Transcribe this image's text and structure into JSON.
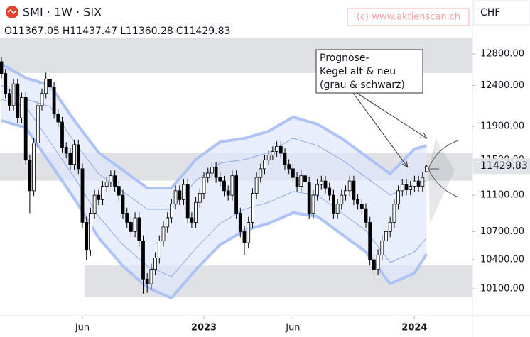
{
  "chart_data": {
    "type": "candlestick",
    "title": "SMI · 1W · SIX",
    "ohlc_prefixes": [
      "O",
      "H",
      "L",
      "C"
    ],
    "watermark": "(c) www.aktienscan.ch",
    "currency": "CHF",
    "annotation": [
      "Prognose-",
      "Kegel alt & neu",
      "(grau & schwarz)"
    ],
    "yscale": "log",
    "ylim": [
      9829,
      13516
    ],
    "yticks": [
      {
        "value": 10100,
        "label": "10100.00"
      },
      {
        "value": 10400,
        "label": "10400.00"
      },
      {
        "value": 10700,
        "label": "10700.00"
      },
      {
        "value": 11100,
        "label": "11100.00"
      },
      {
        "value": 11500,
        "label": "11500.00"
      },
      {
        "value": 11900,
        "label": "11900.00"
      },
      {
        "value": 12400,
        "label": "12400.00"
      },
      {
        "value": 12800,
        "label": "12800.00"
      }
    ],
    "up_color": "#ffffff",
    "down_color": "#000000",
    "zone_color": "#d5d7dc",
    "zones": [
      {
        "from": 12556,
        "to": 13010,
        "from_index": 0
      },
      {
        "from": 11264,
        "to": 11587,
        "from_index": 0
      },
      {
        "from": 10013,
        "to": 10341,
        "from_index": 21
      }
    ],
    "band_fill": "#dfe7fc",
    "band_x": [
      0,
      6,
      12,
      18,
      24,
      30,
      36,
      42,
      48,
      54,
      60,
      66,
      72,
      78,
      84,
      90,
      96,
      102,
      105
    ],
    "bands": [
      {
        "color": "#aec3f5",
        "width": 4,
        "values": [
          12672,
          12493,
          12403,
          11968,
          11588,
          11383,
          11181,
          11181,
          11506,
          11713,
          11755,
          11840,
          12010,
          11925,
          11755,
          11547,
          11342,
          11629,
          11671
        ]
      },
      {
        "color": "#aec3f5",
        "width": 4,
        "values": [
          11968,
          11882,
          11465,
          11062,
          10634,
          10334,
          10114,
          10006,
          10297,
          10559,
          10711,
          10788,
          10904,
          10865,
          10672,
          10483,
          10151,
          10261,
          10461
        ]
      },
      {
        "color": "#8ea8ec",
        "width": 1,
        "values": [
          12403,
          12227,
          12140,
          11713,
          11342,
          11141,
          10943,
          10943,
          11262,
          11465,
          11506,
          11588,
          11755,
          11671,
          11506,
          11302,
          11101,
          11221,
          11262
        ]
      },
      {
        "color": "#8ea8ec",
        "width": 1,
        "values": [
          12227,
          12140,
          11713,
          11302,
          10865,
          10559,
          10334,
          10224,
          10520,
          10788,
          10943,
          11021,
          11141,
          11101,
          10904,
          10711,
          10372,
          10483,
          10634
        ]
      }
    ],
    "categories": [
      null,
      null,
      null,
      null,
      null,
      null,
      null,
      null,
      null,
      null,
      null,
      null,
      null,
      null,
      null,
      null,
      null,
      null,
      null,
      null,
      "Jun",
      null,
      null,
      null,
      null,
      null,
      null,
      null,
      null,
      null,
      null,
      null,
      null,
      null,
      null,
      null,
      null,
      null,
      null,
      null,
      null,
      null,
      null,
      null,
      null,
      null,
      null,
      null,
      null,
      null,
      "2023",
      null,
      null,
      null,
      null,
      null,
      null,
      null,
      null,
      null,
      null,
      null,
      null,
      null,
      null,
      null,
      null,
      null,
      null,
      null,
      null,
      null,
      "Jun",
      null,
      null,
      null,
      null,
      null,
      null,
      null,
      null,
      null,
      null,
      null,
      null,
      null,
      null,
      null,
      null,
      null,
      null,
      null,
      null,
      null,
      null,
      null,
      null,
      null,
      null,
      null,
      null,
      null,
      "2024",
      null,
      null,
      null
    ],
    "open": [
      12700,
      12550,
      12300,
      12150,
      12420,
      12000,
      12250,
      11500,
      11150,
      11700,
      12150,
      12300,
      12480,
      12380,
      12050,
      11950,
      11650,
      11580,
      11450,
      11680,
      11400,
      10800,
      10500,
      10900,
      11100,
      11050,
      11200,
      11250,
      11320,
      11200,
      11100,
      10900,
      10800,
      10700,
      10850,
      10600,
      10200,
      10150,
      10300,
      10420,
      10600,
      10750,
      10850,
      11000,
      11150,
      11050,
      11220,
      10850,
      10800,
      11020,
      11120,
      11300,
      11350,
      11420,
      11300,
      11260,
      11150,
      11100,
      11320,
      10900,
      10700,
      10580,
      10800,
      11120,
      11300,
      11400,
      11500,
      11560,
      11600,
      11660,
      11580,
      11450,
      11400,
      11300,
      11200,
      11320,
      11250,
      10900,
      11100,
      11220,
      11260,
      11180,
      11100,
      10900,
      11000,
      11100,
      11150,
      11260,
      11050,
      11000,
      10950,
      10800,
      10400,
      10300,
      10450,
      10600,
      10700,
      10800,
      11000,
      11150,
      11220,
      11160,
      11200,
      11260,
      11200,
      11367.05
    ],
    "high": [
      12760,
      12610,
      12360,
      12480,
      12480,
      12310,
      12310,
      11560,
      11760,
      12210,
      12360,
      12560,
      12540,
      12440,
      12110,
      12010,
      11710,
      11640,
      11740,
      11740,
      11460,
      10860,
      10960,
      11160,
      11160,
      11260,
      11310,
      11380,
      11380,
      11260,
      11160,
      10960,
      10860,
      10910,
      10910,
      10660,
      10260,
      10360,
      10480,
      10660,
      10810,
      10910,
      11060,
      11210,
      11210,
      11280,
      11280,
      10910,
      11080,
      11180,
      11360,
      11410,
      11480,
      11480,
      11360,
      11320,
      11210,
      11380,
      11380,
      10960,
      10760,
      10860,
      11180,
      11360,
      11460,
      11560,
      11620,
      11660,
      11720,
      11720,
      11640,
      11510,
      11460,
      11360,
      11380,
      11380,
      11310,
      11160,
      11280,
      11320,
      11320,
      11240,
      11160,
      11060,
      11160,
      11210,
      11320,
      11320,
      11110,
      11060,
      11010,
      10860,
      10460,
      10510,
      10660,
      10760,
      10860,
      11060,
      11210,
      11280,
      11280,
      11260,
      11320,
      11320,
      11360,
      11437.47
    ],
    "low": [
      12490,
      12240,
      12090,
      12090,
      11940,
      11940,
      11440,
      10900,
      11090,
      11640,
      12090,
      12240,
      12320,
      11990,
      11890,
      11590,
      11520,
      11390,
      11390,
      11340,
      10740,
      10400,
      10440,
      10840,
      10990,
      10990,
      11140,
      11190,
      11140,
      11040,
      10840,
      10740,
      10640,
      10640,
      10540,
      10050,
      10060,
      10090,
      10240,
      10360,
      10540,
      10690,
      10790,
      10940,
      10990,
      10990,
      10790,
      10740,
      10740,
      10960,
      11060,
      11240,
      11290,
      11240,
      11200,
      11090,
      11040,
      11040,
      10840,
      10640,
      10450,
      10520,
      10740,
      11060,
      11240,
      11340,
      11440,
      11500,
      11540,
      11520,
      11390,
      11340,
      11240,
      11140,
      11140,
      11190,
      10840,
      10840,
      11040,
      11160,
      11120,
      11040,
      10840,
      10840,
      10940,
      11040,
      11090,
      10990,
      10940,
      10890,
      10740,
      10340,
      10250,
      10240,
      10390,
      10540,
      10640,
      10740,
      10940,
      11090,
      11100,
      11100,
      11140,
      11140,
      11140,
      11360.28
    ],
    "close": [
      12550,
      12300,
      12150,
      12420,
      12000,
      12250,
      11500,
      11150,
      11700,
      12150,
      12300,
      12480,
      12380,
      12050,
      11950,
      11650,
      11580,
      11450,
      11680,
      11400,
      10800,
      10500,
      10900,
      11100,
      11050,
      11200,
      11250,
      11320,
      11200,
      11100,
      10900,
      10800,
      10700,
      10850,
      10600,
      10200,
      10150,
      10300,
      10420,
      10600,
      10750,
      10850,
      11000,
      11150,
      11050,
      11220,
      10850,
      10800,
      11020,
      11120,
      11300,
      11350,
      11420,
      11300,
      11260,
      11150,
      11100,
      11320,
      10900,
      10700,
      10580,
      10800,
      11120,
      11300,
      11400,
      11500,
      11560,
      11600,
      11660,
      11580,
      11450,
      11400,
      11300,
      11200,
      11320,
      11250,
      10900,
      11100,
      11220,
      11260,
      11180,
      11100,
      10900,
      11000,
      11100,
      11150,
      11260,
      11050,
      11000,
      10950,
      10800,
      10400,
      10300,
      10450,
      10600,
      10700,
      10800,
      11000,
      11150,
      11220,
      11160,
      11200,
      11260,
      11200,
      11300,
      11429.83
    ]
  }
}
